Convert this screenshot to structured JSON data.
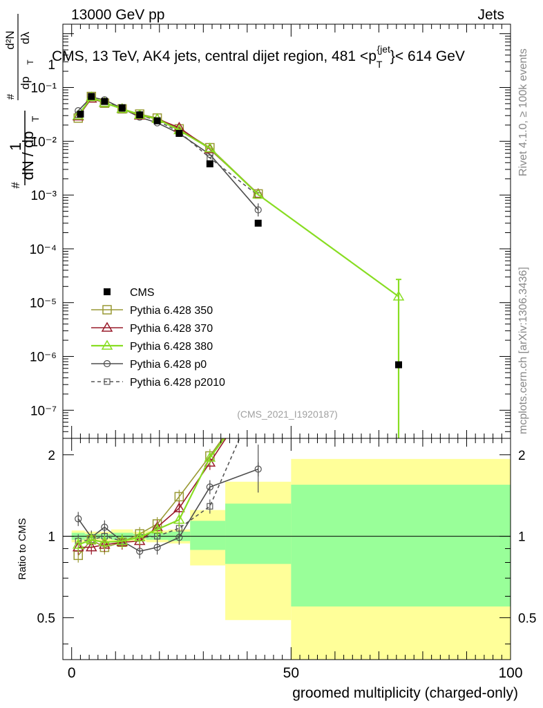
{
  "header": {
    "left": "13000 GeV pp",
    "right": "Jets"
  },
  "side": {
    "top": "Rivet 4.1.0, ≥ 100k events",
    "bottom": "mcplots.cern.ch [arXiv:1306.3436]"
  },
  "colors": {
    "cms": "#000000",
    "p350": "#999933",
    "p370": "#991a2a",
    "p380": "#88dd22",
    "p0": "#4d4d4d",
    "p2010": "#555555",
    "band_outer": "#ffff99",
    "band_inner": "#99ff99"
  },
  "chart_data": [
    {
      "type": "line",
      "title": "CMS, 13 TeV, AK4 jets, central dijet region, 481 <p",
      "title_sub": "T",
      "title_sup": "{jet",
      "title_end": "}< 614 GeV",
      "ylabel_lines": [
        "1",
        "dN / dp",
        "T",
        "#",
        "d²N",
        "dp",
        "T",
        "dλ",
        "#"
      ],
      "yscale": "log",
      "ylim": [
        3e-08,
        1.5
      ],
      "xlim": [
        -2,
        100
      ],
      "ytick_labels": [
        "10⁻¹",
        "10⁻²",
        "10⁻³",
        "10⁻⁴",
        "10⁻⁵",
        "10⁻⁶",
        "10⁻⁷"
      ],
      "ytick_values": [
        0.1,
        0.01,
        0.001,
        0.0001,
        1e-05,
        1e-06,
        1e-07
      ],
      "ytop_label": "1",
      "watermark": "(CMS_2021_I1920187)",
      "series": [
        {
          "name": "CMS",
          "key": "cms",
          "x": [
            2,
            4.5,
            7.5,
            11.5,
            15.5,
            19.5,
            24.5,
            31.5,
            42.5,
            74.5
          ],
          "y": [
            0.032,
            0.068,
            0.055,
            0.042,
            0.031,
            0.024,
            0.014,
            0.0038,
            0.0003,
            7e-07
          ]
        },
        {
          "name": "Pythia 6.428 350",
          "key": "p350",
          "x": [
            1.5,
            4.5,
            7.5,
            11.5,
            15.5,
            19.5,
            24.5,
            31.5,
            42.5
          ],
          "y": [
            0.027,
            0.068,
            0.051,
            0.04,
            0.032,
            0.027,
            0.017,
            0.0076,
            0.00105
          ]
        },
        {
          "name": "Pythia 6.428 370",
          "key": "p370",
          "x": [
            1.5,
            4.5,
            7.5,
            11.5,
            15.5,
            19.5,
            24.5,
            31.5,
            42.5
          ],
          "y": [
            0.029,
            0.062,
            0.052,
            0.04,
            0.03,
            0.026,
            0.018,
            0.0071,
            0.00105
          ]
        },
        {
          "name": "Pythia 6.428 380",
          "key": "p380",
          "x": [
            1.5,
            4.5,
            7.5,
            11.5,
            15.5,
            19.5,
            24.5,
            31.5,
            42.5,
            74.5
          ],
          "y": [
            0.03,
            0.066,
            0.052,
            0.04,
            0.031,
            0.026,
            0.016,
            0.0074,
            0.00102,
            1.3e-05
          ]
        },
        {
          "name": "Pythia 6.428 p0",
          "key": "p0",
          "x": [
            1.5,
            4.5,
            7.5,
            11.5,
            15.5,
            19.5,
            24.5,
            31.5,
            42.5
          ],
          "y": [
            0.037,
            0.066,
            0.059,
            0.041,
            0.028,
            0.022,
            0.014,
            0.0057,
            0.00053
          ]
        },
        {
          "name": "Pythia 6.428 p2010",
          "key": "p2010",
          "x": [
            1.5,
            4.5,
            7.5,
            11.5,
            15.5,
            19.5,
            24.5,
            31.5,
            42.5
          ],
          "y": [
            0.031,
            0.066,
            0.055,
            0.04,
            0.031,
            0.024,
            0.015,
            0.0049,
            0.00098
          ]
        }
      ]
    },
    {
      "type": "line",
      "ylabel": "Ratio to CMS",
      "xlabel": "groomed multiplicity (charged-only)",
      "xlim": [
        -2,
        100
      ],
      "ylim": [
        0.35,
        2.3
      ],
      "yscale": "log",
      "xtick_values": [
        0,
        50,
        100
      ],
      "xtick_labels": [
        "0",
        "50",
        "100"
      ],
      "ytick_values": [
        0.5,
        1,
        2
      ],
      "ytick_labels": [
        "0.5",
        "1",
        "2"
      ],
      "bands": [
        {
          "x0": 0,
          "x1": 3,
          "inner": [
            0.97,
            1.03
          ],
          "outer": [
            0.95,
            1.05
          ]
        },
        {
          "x0": 3,
          "x1": 6,
          "inner": [
            0.98,
            1.02
          ],
          "outer": [
            0.96,
            1.04
          ]
        },
        {
          "x0": 6,
          "x1": 9,
          "inner": [
            0.98,
            1.02
          ],
          "outer": [
            0.96,
            1.04
          ]
        },
        {
          "x0": 9,
          "x1": 14,
          "inner": [
            0.97,
            1.03
          ],
          "outer": [
            0.95,
            1.06
          ]
        },
        {
          "x0": 14,
          "x1": 17,
          "inner": [
            0.98,
            1.02
          ],
          "outer": [
            0.96,
            1.04
          ]
        },
        {
          "x0": 17,
          "x1": 22,
          "inner": [
            0.97,
            1.03
          ],
          "outer": [
            0.95,
            1.05
          ]
        },
        {
          "x0": 22,
          "x1": 27,
          "inner": [
            0.96,
            1.04
          ],
          "outer": [
            0.94,
            1.06
          ]
        },
        {
          "x0": 27,
          "x1": 35,
          "inner": [
            0.89,
            1.14
          ],
          "outer": [
            0.78,
            1.25
          ]
        },
        {
          "x0": 35,
          "x1": 50,
          "inner": [
            0.79,
            1.32
          ],
          "outer": [
            0.49,
            1.59
          ]
        },
        {
          "x0": 50,
          "x1": 100,
          "inner": [
            0.55,
            1.55
          ],
          "outer": [
            0.35,
            1.93
          ]
        }
      ],
      "series": [
        {
          "key": "p350",
          "x": [
            1.5,
            4.5,
            7.5,
            11.5,
            15.5,
            19.5,
            24.5,
            31.5,
            42.5
          ],
          "y": [
            0.85,
            0.97,
            0.91,
            0.95,
            1.02,
            1.11,
            1.4,
            1.98,
            3.5
          ]
        },
        {
          "key": "p370",
          "x": [
            1.5,
            4.5,
            7.5,
            11.5,
            15.5,
            19.5,
            24.5,
            31.5,
            42.5
          ],
          "y": [
            0.91,
            0.91,
            0.93,
            0.95,
            0.96,
            1.08,
            1.27,
            1.87,
            3.5
          ]
        },
        {
          "key": "p380",
          "x": [
            1.5,
            4.5,
            7.5,
            11.5,
            15.5,
            19.5,
            24.5,
            31.5,
            42.5
          ],
          "y": [
            0.93,
            0.97,
            0.95,
            0.96,
            0.99,
            1.06,
            1.15,
            1.95,
            3.4
          ]
        },
        {
          "key": "p0",
          "x": [
            1.5,
            4.5,
            7.5,
            11.5,
            15.5,
            19.5,
            24.5,
            31.5,
            42.5
          ],
          "y": [
            1.16,
            0.99,
            1.08,
            0.96,
            0.88,
            0.91,
            0.99,
            1.52,
            1.77
          ]
        },
        {
          "key": "p2010",
          "x": [
            1.5,
            4.5,
            7.5,
            11.5,
            15.5,
            19.5,
            24.5,
            31.5,
            42.5
          ],
          "y": [
            0.96,
            0.97,
            1.0,
            0.96,
            0.99,
            1.0,
            1.07,
            1.29,
            3.3
          ]
        }
      ]
    }
  ]
}
